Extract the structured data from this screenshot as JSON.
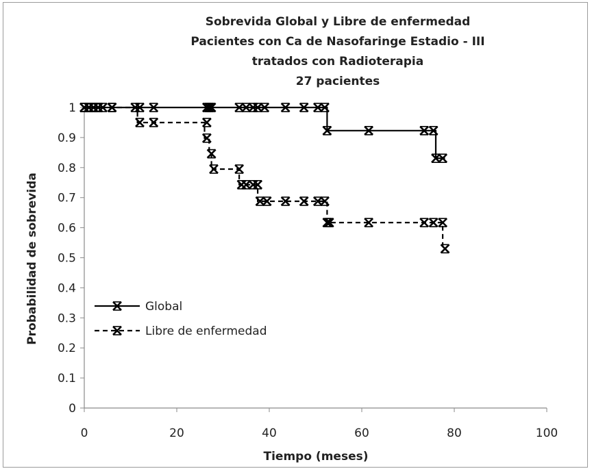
{
  "chart_data": {
    "type": "line",
    "title_lines": [
      "Sobrevida Global y Libre de enfermedad",
      "Pacientes con Ca de Nasofaringe Estadio - III",
      "tratados con Radioterapia",
      "27 pacientes"
    ],
    "xlabel": "Tiempo (meses)",
    "ylabel": "Probabilidad de sobrevida",
    "xlim": [
      0,
      100
    ],
    "ylim": [
      0,
      1
    ],
    "x_ticks": [
      0,
      20,
      40,
      60,
      80,
      100
    ],
    "y_ticks": [
      0,
      0.1,
      0.2,
      0.3,
      0.4,
      0.5,
      0.6,
      0.7,
      0.8,
      0.9,
      1
    ],
    "x_tick_labels": [
      "0",
      "20",
      "40",
      "60",
      "80",
      "100"
    ],
    "y_tick_labels": [
      "0",
      "0.1",
      "0.2",
      "0.3",
      "0.4",
      "0.5",
      "0.6",
      "0.7",
      "0.8",
      "0.9",
      "1"
    ],
    "legend_position": "left",
    "grid": false,
    "series": [
      {
        "name": "Global",
        "style": "solid",
        "color": "#000000",
        "step_points": [
          [
            0,
            1
          ],
          [
            52.5,
            1
          ],
          [
            52.5,
            0.923
          ],
          [
            76,
            0.923
          ],
          [
            76,
            0.831
          ],
          [
            78,
            0.831
          ]
        ],
        "markers": [
          [
            0,
            1
          ],
          [
            1,
            1
          ],
          [
            2,
            1
          ],
          [
            3,
            1
          ],
          [
            4,
            1
          ],
          [
            6,
            1
          ],
          [
            11,
            1
          ],
          [
            12,
            1
          ],
          [
            15,
            1
          ],
          [
            26.5,
            1
          ],
          [
            27,
            1
          ],
          [
            27.5,
            1
          ],
          [
            33.5,
            1
          ],
          [
            35,
            1
          ],
          [
            36.5,
            1
          ],
          [
            37.5,
            1
          ],
          [
            39,
            1
          ],
          [
            43.5,
            1
          ],
          [
            47.5,
            1
          ],
          [
            50.5,
            1
          ],
          [
            52,
            1
          ],
          [
            52.5,
            0.923
          ],
          [
            61.5,
            0.923
          ],
          [
            73.5,
            0.923
          ],
          [
            75.5,
            0.923
          ],
          [
            76,
            0.831
          ],
          [
            77.5,
            0.831
          ]
        ]
      },
      {
        "name": "Libre de enfermedad",
        "style": "dashed",
        "color": "#000000",
        "step_points": [
          [
            0,
            1
          ],
          [
            11.5,
            1
          ],
          [
            11.5,
            0.95
          ],
          [
            26,
            0.95
          ],
          [
            26,
            0.898
          ],
          [
            27,
            0.898
          ],
          [
            27,
            0.846
          ],
          [
            27.5,
            0.846
          ],
          [
            27.5,
            0.795
          ],
          [
            33.5,
            0.795
          ],
          [
            33.5,
            0.743
          ],
          [
            37.5,
            0.743
          ],
          [
            37.5,
            0.688
          ],
          [
            52.5,
            0.688
          ],
          [
            52.5,
            0.617
          ],
          [
            77.5,
            0.617
          ],
          [
            77.5,
            0.53
          ],
          [
            78,
            0.53
          ]
        ],
        "markers": [
          [
            0,
            1
          ],
          [
            1,
            1
          ],
          [
            2,
            1
          ],
          [
            3,
            1
          ],
          [
            6,
            1
          ],
          [
            12,
            0.95
          ],
          [
            15,
            0.95
          ],
          [
            26.5,
            0.95
          ],
          [
            26.5,
            0.898
          ],
          [
            27.5,
            0.846
          ],
          [
            28,
            0.795
          ],
          [
            33.5,
            0.795
          ],
          [
            34,
            0.743
          ],
          [
            35,
            0.743
          ],
          [
            36.5,
            0.743
          ],
          [
            37.5,
            0.743
          ],
          [
            38,
            0.688
          ],
          [
            39.5,
            0.688
          ],
          [
            43.5,
            0.688
          ],
          [
            47.5,
            0.688
          ],
          [
            50.5,
            0.688
          ],
          [
            52,
            0.688
          ],
          [
            52.5,
            0.617
          ],
          [
            53,
            0.617
          ],
          [
            61.5,
            0.617
          ],
          [
            73.5,
            0.617
          ],
          [
            75.5,
            0.617
          ],
          [
            77.5,
            0.617
          ],
          [
            78,
            0.53
          ]
        ]
      }
    ]
  }
}
